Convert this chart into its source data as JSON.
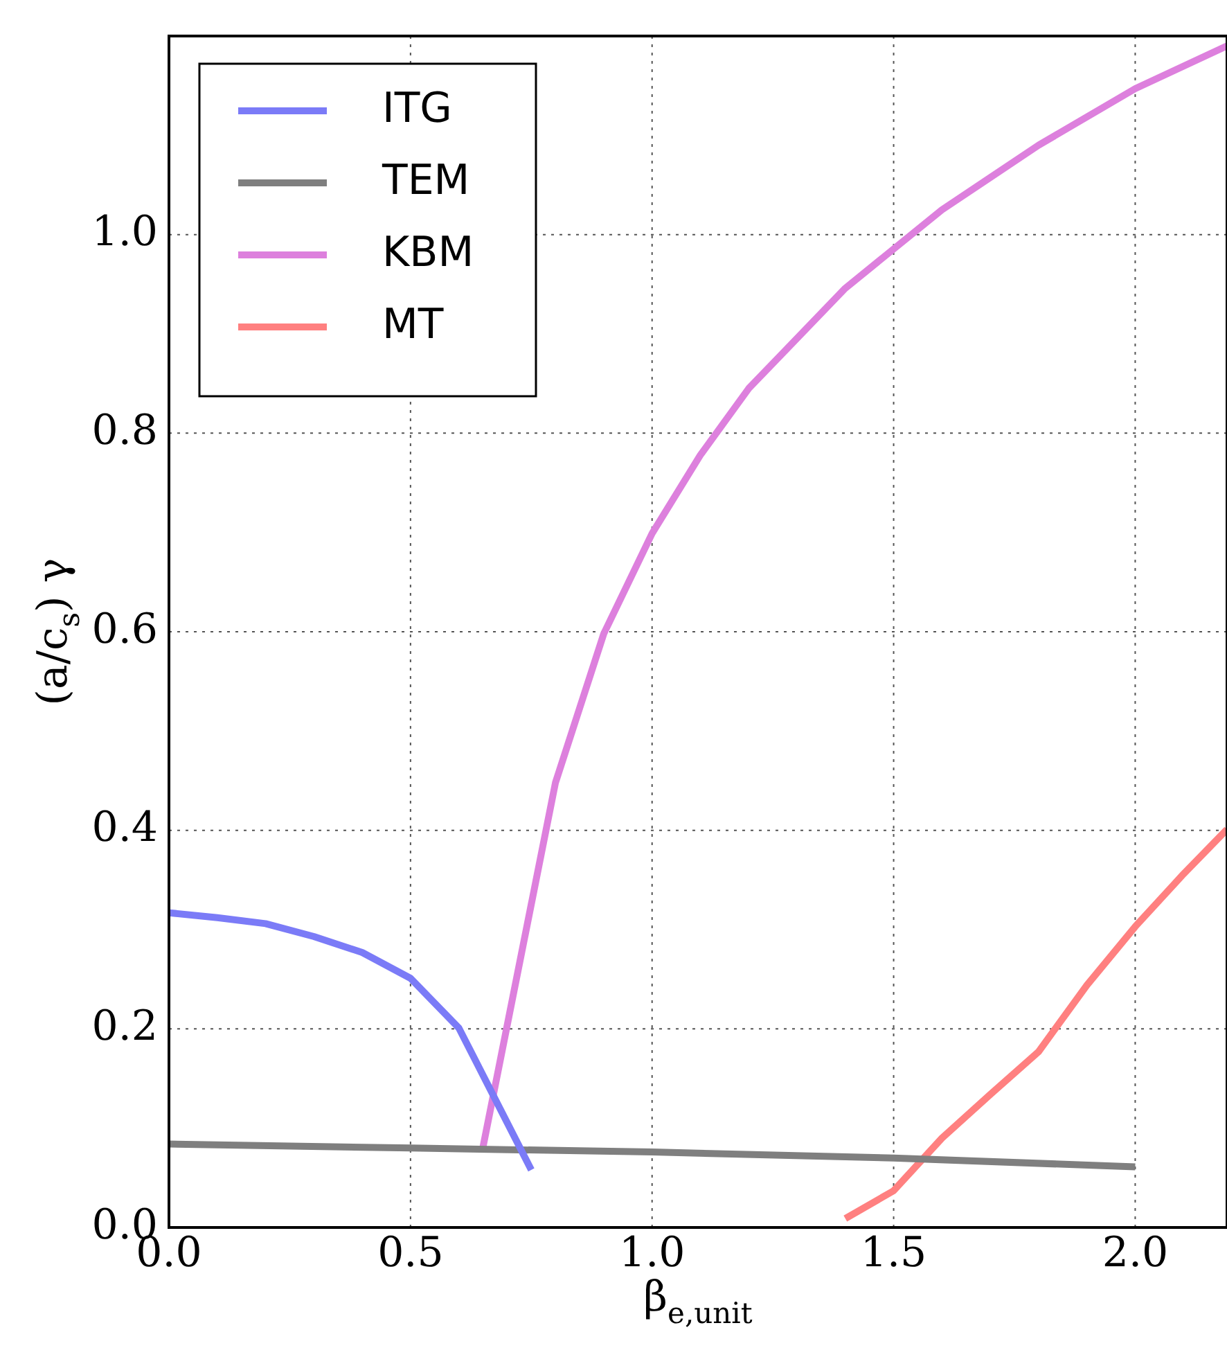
{
  "chart_data": {
    "type": "line",
    "xlabel": "β$_{e,unit}$",
    "ylabel": "(a/c$_{s}$) γ",
    "xlim": [
      0,
      2.19
    ],
    "xticks": [
      {
        "value": 0,
        "label": "0.0"
      },
      0.5,
      {
        "value": 1,
        "label": "1.0"
      },
      1.5,
      {
        "value": 2,
        "label": "2.0"
      }
    ],
    "ylim": [
      0,
      1.2
    ],
    "yticks": [
      {
        "value": 0,
        "label": "0.0"
      },
      0.2,
      0.4,
      0.6,
      0.8,
      {
        "value": 1,
        "label": "1.0"
      }
    ],
    "grid": true,
    "legend": "top left",
    "marker": "none",
    "line_style": "solid",
    "series": [
      {
        "name": "ITG",
        "color": "#7b7bf7",
        "x": [
          0,
          0.1,
          0.2,
          0.3,
          0.4,
          0.5,
          0.6,
          0.75
        ],
        "values": [
          0.317,
          0.312,
          0.306,
          0.293,
          0.277,
          0.251,
          0.201,
          0.058
        ]
      },
      {
        "name": "TEM",
        "color": "#7f7f7f",
        "x": [
          0,
          0.5,
          1,
          1.5,
          2
        ],
        "values": [
          0.084,
          0.08,
          0.076,
          0.07,
          0.061
        ]
      },
      {
        "name": "KBM",
        "color": "#dd80dd",
        "x": [
          0.65,
          0.8,
          0.9,
          1,
          1.1,
          1.2,
          1.4,
          1.6,
          1.8,
          2,
          2.19
        ],
        "values": [
          0.081,
          0.448,
          0.598,
          0.699,
          0.778,
          0.845,
          0.946,
          1.025,
          1.09,
          1.147,
          1.19
        ]
      },
      {
        "name": "MT",
        "color": "#ff8080",
        "x": [
          1.4,
          1.5,
          1.6,
          1.7,
          1.8,
          1.9,
          2,
          2.1,
          2.19
        ],
        "values": [
          0.009,
          0.037,
          0.09,
          0.134,
          0.177,
          0.244,
          0.303,
          0.356,
          0.401
        ]
      }
    ]
  }
}
